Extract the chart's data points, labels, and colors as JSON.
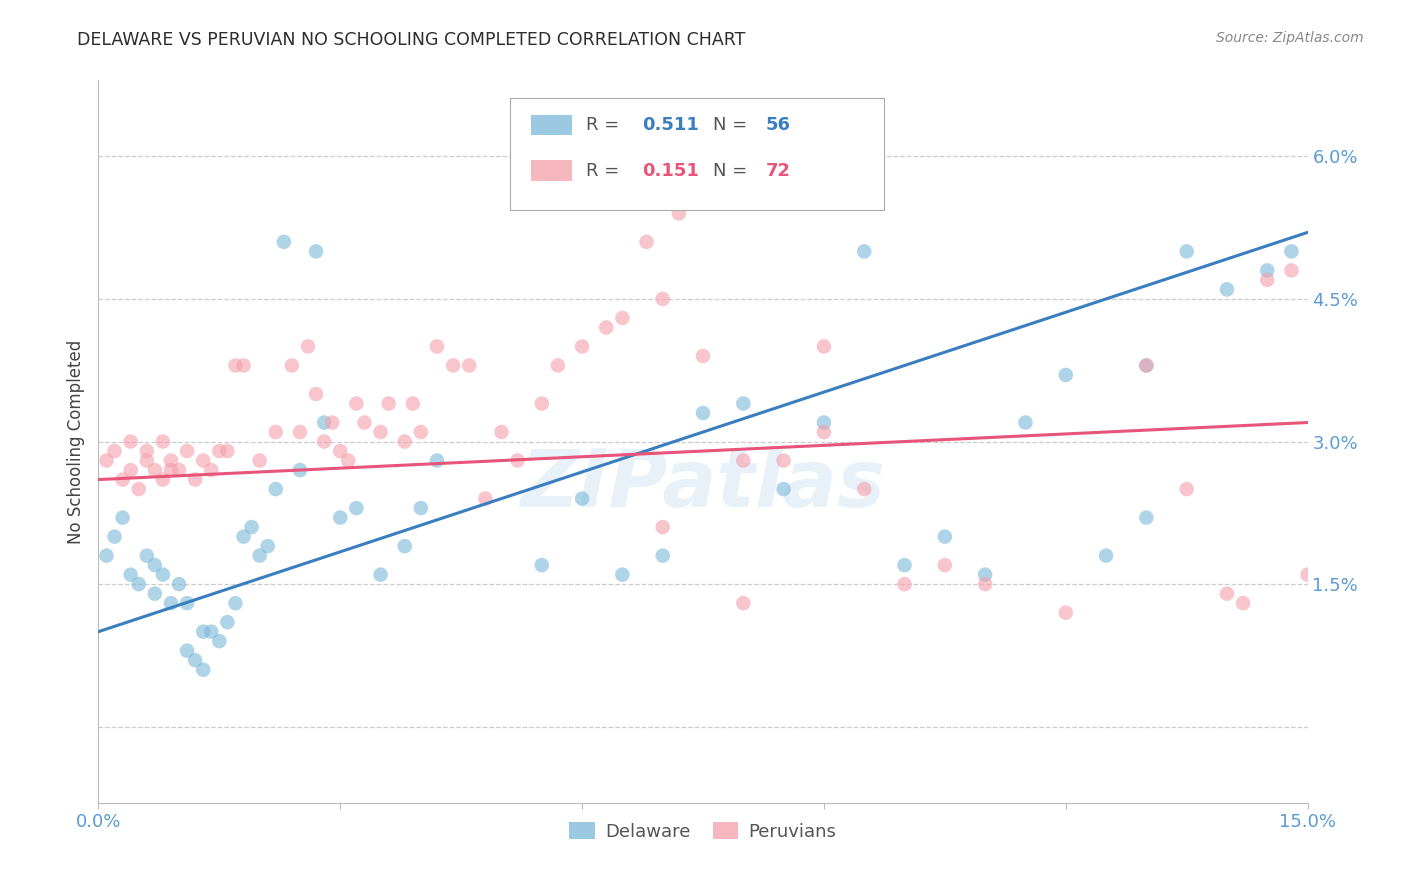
{
  "title": "DELAWARE VS PERUVIAN NO SCHOOLING COMPLETED CORRELATION CHART",
  "source": "Source: ZipAtlas.com",
  "ylabel": "No Schooling Completed",
  "x_min": 0.0,
  "x_max": 0.15,
  "y_min": -0.008,
  "y_max": 0.068,
  "x_ticks": [
    0.0,
    0.03,
    0.06,
    0.09,
    0.12,
    0.15
  ],
  "y_ticks": [
    0.0,
    0.015,
    0.03,
    0.045,
    0.06
  ],
  "delaware_R": 0.511,
  "delaware_N": 56,
  "peruvian_R": 0.151,
  "peruvian_N": 72,
  "delaware_color": "#7ab8d9",
  "peruvian_color": "#f49faa",
  "delaware_line_color": "#3a7ebf",
  "peruvian_line_color": "#e8547a",
  "background_color": "#ffffff",
  "grid_color": "#cccccc",
  "title_color": "#2d2d2d",
  "ylabel_color": "#444444",
  "tick_label_color": "#5b9bd5",
  "watermark": "ZIPatlas",
  "delaware_x": [
    0.001,
    0.002,
    0.003,
    0.004,
    0.005,
    0.006,
    0.007,
    0.007,
    0.008,
    0.009,
    0.01,
    0.011,
    0.011,
    0.012,
    0.013,
    0.013,
    0.014,
    0.015,
    0.016,
    0.017,
    0.018,
    0.019,
    0.02,
    0.021,
    0.022,
    0.023,
    0.025,
    0.027,
    0.028,
    0.03,
    0.032,
    0.035,
    0.038,
    0.04,
    0.042,
    0.055,
    0.06,
    0.065,
    0.07,
    0.075,
    0.08,
    0.085,
    0.09,
    0.095,
    0.1,
    0.105,
    0.11,
    0.115,
    0.12,
    0.125,
    0.13,
    0.13,
    0.135,
    0.14,
    0.145,
    0.148
  ],
  "delaware_y": [
    0.018,
    0.02,
    0.022,
    0.016,
    0.015,
    0.018,
    0.014,
    0.017,
    0.016,
    0.013,
    0.015,
    0.008,
    0.013,
    0.007,
    0.006,
    0.01,
    0.01,
    0.009,
    0.011,
    0.013,
    0.02,
    0.021,
    0.018,
    0.019,
    0.025,
    0.051,
    0.027,
    0.05,
    0.032,
    0.022,
    0.023,
    0.016,
    0.019,
    0.023,
    0.028,
    0.017,
    0.024,
    0.016,
    0.018,
    0.033,
    0.034,
    0.025,
    0.032,
    0.05,
    0.017,
    0.02,
    0.016,
    0.032,
    0.037,
    0.018,
    0.022,
    0.038,
    0.05,
    0.046,
    0.048,
    0.05
  ],
  "peruvian_x": [
    0.001,
    0.002,
    0.003,
    0.004,
    0.004,
    0.005,
    0.006,
    0.006,
    0.007,
    0.008,
    0.008,
    0.009,
    0.009,
    0.01,
    0.011,
    0.012,
    0.013,
    0.014,
    0.015,
    0.016,
    0.017,
    0.018,
    0.02,
    0.022,
    0.024,
    0.025,
    0.026,
    0.027,
    0.028,
    0.029,
    0.03,
    0.031,
    0.032,
    0.033,
    0.035,
    0.036,
    0.038,
    0.039,
    0.04,
    0.042,
    0.044,
    0.046,
    0.048,
    0.05,
    0.052,
    0.055,
    0.057,
    0.06,
    0.063,
    0.065,
    0.068,
    0.07,
    0.072,
    0.075,
    0.08,
    0.085,
    0.09,
    0.095,
    0.1,
    0.105,
    0.11,
    0.12,
    0.13,
    0.135,
    0.14,
    0.142,
    0.145,
    0.148,
    0.15,
    0.07,
    0.08,
    0.09
  ],
  "peruvian_y": [
    0.028,
    0.029,
    0.026,
    0.027,
    0.03,
    0.025,
    0.028,
    0.029,
    0.027,
    0.026,
    0.03,
    0.028,
    0.027,
    0.027,
    0.029,
    0.026,
    0.028,
    0.027,
    0.029,
    0.029,
    0.038,
    0.038,
    0.028,
    0.031,
    0.038,
    0.031,
    0.04,
    0.035,
    0.03,
    0.032,
    0.029,
    0.028,
    0.034,
    0.032,
    0.031,
    0.034,
    0.03,
    0.034,
    0.031,
    0.04,
    0.038,
    0.038,
    0.024,
    0.031,
    0.028,
    0.034,
    0.038,
    0.04,
    0.042,
    0.043,
    0.051,
    0.045,
    0.054,
    0.039,
    0.028,
    0.028,
    0.031,
    0.025,
    0.015,
    0.017,
    0.015,
    0.012,
    0.038,
    0.025,
    0.014,
    0.013,
    0.047,
    0.048,
    0.016,
    0.021,
    0.013,
    0.04
  ]
}
